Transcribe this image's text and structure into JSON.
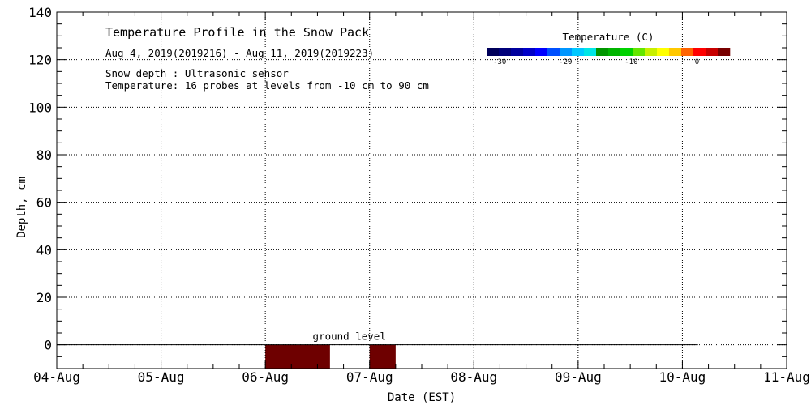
{
  "chart_data": {
    "type": "heatmap",
    "title": "Temperature Profile in the Snow Pack",
    "subtitle": "Aug  4, 2019(2019216) - Aug 11, 2019(2019223)",
    "notes": [
      "Snow depth : Ultrasonic sensor",
      "Temperature: 16 probes at levels from -10 cm to 90 cm"
    ],
    "xlabel": "Date (EST)",
    "ylabel": "Depth, cm",
    "x_tick_labels": [
      "04-Aug",
      "05-Aug",
      "06-Aug",
      "07-Aug",
      "08-Aug",
      "09-Aug",
      "10-Aug",
      "11-Aug"
    ],
    "xlim_days": [
      4,
      11
    ],
    "y_ticks": [
      0,
      20,
      40,
      60,
      80,
      100,
      120,
      140
    ],
    "ylim": [
      -10,
      140
    ],
    "grid": true,
    "colorbar": {
      "title": "Temperature (C)",
      "range": [
        -32,
        5
      ],
      "tick_values": [
        -30,
        -20,
        -10,
        0
      ],
      "tick_labels": [
        "-30",
        "-20",
        "-10",
        "0"
      ],
      "colors": [
        "#00005a",
        "#00007a",
        "#00009e",
        "#0000c8",
        "#0000ff",
        "#0050ff",
        "#0096ff",
        "#00c8ff",
        "#00e6e6",
        "#009600",
        "#00b400",
        "#00d200",
        "#64e600",
        "#c8f000",
        "#ffff00",
        "#ffc800",
        "#ff6400",
        "#ff0000",
        "#c80000",
        "#780000"
      ]
    },
    "ground_level": {
      "label": "ground level",
      "y": 0,
      "x_from_day": 4,
      "x_to_day": 10.15
    },
    "temperature_blocks": [
      {
        "x_start_day": 6.0,
        "x_end_day": 6.62,
        "y_top": 0,
        "y_bottom": -10,
        "color": "#6e0000"
      },
      {
        "x_start_day": 7.0,
        "x_end_day": 7.25,
        "y_top": 0,
        "y_bottom": -10,
        "color": "#6e0000"
      }
    ]
  }
}
